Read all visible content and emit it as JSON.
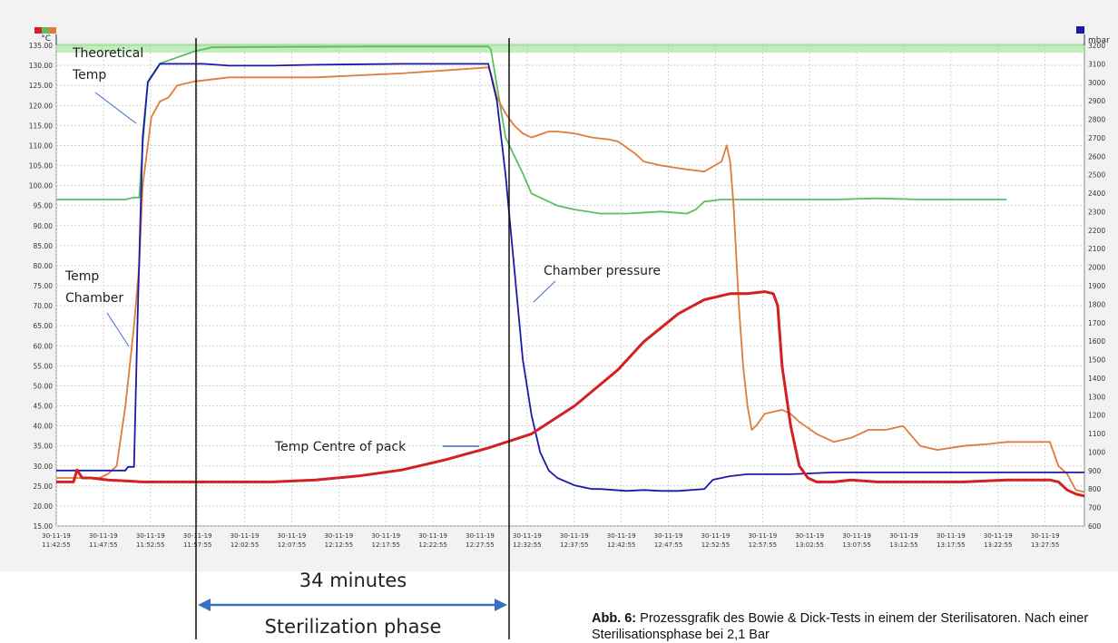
{
  "chart_data": {
    "type": "line",
    "left_unit": "°C",
    "right_unit": "mbar",
    "left_axis": {
      "ylim": [
        15,
        135
      ],
      "ticks": [
        "135.00",
        "130.00",
        "125.00",
        "120.00",
        "115.00",
        "110.00",
        "105.00",
        "100.00",
        "95.00",
        "90.00",
        "85.00",
        "80.00",
        "75.00",
        "70.00",
        "65.00",
        "60.00",
        "55.00",
        "50.00",
        "45.00",
        "40.00",
        "35.00",
        "30.00",
        "25.00",
        "20.00",
        "15.00"
      ]
    },
    "right_axis": {
      "ylim": [
        600,
        3200
      ],
      "ticks": [
        "3200",
        "3100",
        "3000",
        "2900",
        "2800",
        "2700",
        "2600",
        "2500",
        "2400",
        "2300",
        "2200",
        "2100",
        "2000",
        "1900",
        "1800",
        "1700",
        "1600",
        "1500",
        "1400",
        "1300",
        "1200",
        "1100",
        "1000",
        "900",
        "800",
        "700",
        "600"
      ]
    },
    "x_ticks": [
      {
        "date": "30-11-19",
        "time": "11:42:55"
      },
      {
        "date": "30-11-19",
        "time": "11:47:55"
      },
      {
        "date": "30-11-19",
        "time": "11:52:55"
      },
      {
        "date": "30-11-19",
        "time": "11:57:55"
      },
      {
        "date": "30-11-19",
        "time": "12:02:55"
      },
      {
        "date": "30-11-19",
        "time": "12:07:55"
      },
      {
        "date": "30-11-19",
        "time": "12:12:55"
      },
      {
        "date": "30-11-19",
        "time": "12:17:55"
      },
      {
        "date": "30-11-19",
        "time": "12:22:55"
      },
      {
        "date": "30-11-19",
        "time": "12:27:55"
      },
      {
        "date": "30-11-19",
        "time": "12:32:55"
      },
      {
        "date": "30-11-19",
        "time": "12:37:55"
      },
      {
        "date": "30-11-19",
        "time": "12:42:55"
      },
      {
        "date": "30-11-19",
        "time": "12:47:55"
      },
      {
        "date": "30-11-19",
        "time": "12:52:55"
      },
      {
        "date": "30-11-19",
        "time": "12:57:55"
      },
      {
        "date": "30-11-19",
        "time": "13:02:55"
      },
      {
        "date": "30-11-19",
        "time": "13:07:55"
      },
      {
        "date": "30-11-19",
        "time": "13:12:55"
      },
      {
        "date": "30-11-19",
        "time": "13:17:55"
      },
      {
        "date": "30-11-19",
        "time": "13:22:55"
      },
      {
        "date": "30-11-19",
        "time": "13:27:55"
      }
    ],
    "grid": true,
    "series": [
      {
        "name": "Theoretical Temp",
        "axis": "left",
        "color": "#5cbf5c",
        "points": [
          [
            0,
            96.5
          ],
          [
            8,
            96.5
          ],
          [
            9,
            97
          ],
          [
            9.6,
            97
          ],
          [
            10,
            110
          ],
          [
            10.6,
            126
          ],
          [
            12,
            130.5
          ],
          [
            14,
            132
          ],
          [
            16,
            133.5
          ],
          [
            18,
            134.5
          ],
          [
            24,
            134.6
          ],
          [
            40,
            134.7
          ],
          [
            50,
            134.7
          ],
          [
            50.3,
            134
          ],
          [
            51,
            125
          ],
          [
            52,
            112
          ],
          [
            54,
            103
          ],
          [
            55,
            98
          ],
          [
            56,
            97
          ],
          [
            58,
            95
          ],
          [
            60,
            94
          ],
          [
            63,
            93
          ],
          [
            66,
            93
          ],
          [
            70,
            93.5
          ],
          [
            73,
            93
          ],
          [
            74,
            94
          ],
          [
            75,
            96
          ],
          [
            77,
            96.5
          ],
          [
            82,
            96.5
          ],
          [
            90,
            96.5
          ],
          [
            95,
            96.8
          ],
          [
            100,
            96.5
          ],
          [
            110,
            96.5
          ]
        ]
      },
      {
        "name": "Temp Chamber",
        "axis": "left",
        "color": "#e07b3c",
        "points": [
          [
            0,
            27
          ],
          [
            5,
            27
          ],
          [
            6,
            28
          ],
          [
            7,
            30
          ],
          [
            8,
            45
          ],
          [
            9,
            65
          ],
          [
            9.6,
            80
          ],
          [
            10,
            100
          ],
          [
            10.6,
            110
          ],
          [
            11,
            117
          ],
          [
            12,
            121
          ],
          [
            13,
            122
          ],
          [
            14,
            125
          ],
          [
            16,
            126
          ],
          [
            20,
            127
          ],
          [
            30,
            127
          ],
          [
            40,
            128
          ],
          [
            50,
            129.5
          ],
          [
            50.3,
            128
          ],
          [
            51,
            122
          ],
          [
            52,
            118
          ],
          [
            53,
            115
          ],
          [
            54,
            113
          ],
          [
            55,
            112
          ],
          [
            57,
            113.5
          ],
          [
            58,
            113.5
          ],
          [
            60,
            113
          ],
          [
            62,
            112
          ],
          [
            64,
            111.5
          ],
          [
            65,
            111
          ],
          [
            67,
            108
          ],
          [
            68,
            106
          ],
          [
            70,
            105
          ],
          [
            73,
            104
          ],
          [
            75,
            103.5
          ],
          [
            77,
            106
          ],
          [
            77.6,
            110
          ],
          [
            78,
            106
          ],
          [
            78.4,
            95
          ],
          [
            79,
            70
          ],
          [
            79.5,
            55
          ],
          [
            80,
            45
          ],
          [
            80.5,
            39
          ],
          [
            81,
            40
          ],
          [
            82,
            43
          ],
          [
            84,
            44
          ],
          [
            85,
            43
          ],
          [
            86,
            41
          ],
          [
            88,
            38
          ],
          [
            90,
            36
          ],
          [
            92,
            37
          ],
          [
            94,
            39
          ],
          [
            96,
            39
          ],
          [
            98,
            40
          ],
          [
            100,
            35
          ],
          [
            102,
            34
          ],
          [
            105,
            35
          ],
          [
            108,
            35.5
          ],
          [
            110,
            36
          ],
          [
            112,
            36
          ],
          [
            114,
            36
          ],
          [
            115,
            36
          ],
          [
            116,
            30
          ],
          [
            117,
            28
          ],
          [
            118,
            24
          ],
          [
            119,
            23.5
          ]
        ]
      },
      {
        "name": "Chamber pressure",
        "axis": "right",
        "color": "#1a1aa8",
        "points": [
          [
            0,
            900
          ],
          [
            6,
            900
          ],
          [
            8,
            900
          ],
          [
            8.3,
            920
          ],
          [
            9,
            920
          ],
          [
            9.4,
            1700
          ],
          [
            10,
            2700
          ],
          [
            10.6,
            3000
          ],
          [
            12,
            3100
          ],
          [
            14,
            3100
          ],
          [
            17,
            3100
          ],
          [
            20,
            3090
          ],
          [
            25,
            3090
          ],
          [
            30,
            3095
          ],
          [
            40,
            3100
          ],
          [
            50,
            3100
          ],
          [
            51,
            2900
          ],
          [
            52,
            2500
          ],
          [
            53,
            2000
          ],
          [
            54,
            1500
          ],
          [
            55,
            1200
          ],
          [
            56,
            1000
          ],
          [
            57,
            900
          ],
          [
            58,
            860
          ],
          [
            60,
            820
          ],
          [
            62,
            800
          ],
          [
            63,
            800
          ],
          [
            66,
            790
          ],
          [
            68,
            795
          ],
          [
            70,
            790
          ],
          [
            72,
            790
          ],
          [
            75,
            800
          ],
          [
            76,
            850
          ],
          [
            78,
            870
          ],
          [
            80,
            880
          ],
          [
            85,
            880
          ],
          [
            90,
            890
          ],
          [
            100,
            890
          ],
          [
            110,
            890
          ],
          [
            119,
            890
          ]
        ]
      },
      {
        "name": "Temp Centre of pack",
        "axis": "left",
        "color": "#d42020",
        "points": [
          [
            0,
            26
          ],
          [
            2,
            26
          ],
          [
            2.4,
            29
          ],
          [
            3,
            27
          ],
          [
            4,
            27
          ],
          [
            6,
            26.5
          ],
          [
            10,
            26
          ],
          [
            15,
            26
          ],
          [
            20,
            26
          ],
          [
            25,
            26
          ],
          [
            30,
            26.5
          ],
          [
            35,
            27.5
          ],
          [
            40,
            29
          ],
          [
            45,
            31.5
          ],
          [
            50,
            34.5
          ],
          [
            55,
            38
          ],
          [
            60,
            45
          ],
          [
            65,
            54
          ],
          [
            68,
            61
          ],
          [
            72,
            68
          ],
          [
            75,
            71.5
          ],
          [
            78,
            73
          ],
          [
            80,
            73
          ],
          [
            82,
            73.5
          ],
          [
            83,
            73
          ],
          [
            83.5,
            70
          ],
          [
            84,
            55
          ],
          [
            85,
            40
          ],
          [
            86,
            30
          ],
          [
            87,
            27
          ],
          [
            88,
            26
          ],
          [
            90,
            26
          ],
          [
            92,
            26.5
          ],
          [
            95,
            26
          ],
          [
            98,
            26
          ],
          [
            100,
            26
          ],
          [
            105,
            26
          ],
          [
            110,
            26.5
          ],
          [
            115,
            26.5
          ],
          [
            116,
            26
          ],
          [
            117,
            24
          ],
          [
            118,
            23
          ],
          [
            119,
            22.5
          ]
        ]
      }
    ],
    "annotations": [
      {
        "id": "theoretical",
        "lines": [
          "Theoretical",
          "Temp"
        ]
      },
      {
        "id": "chamber",
        "lines": [
          "Temp",
          "Chamber"
        ]
      },
      {
        "id": "pressure",
        "lines": [
          "Chamber pressure"
        ]
      },
      {
        "id": "centre",
        "lines": [
          "Temp Centre of pack"
        ]
      }
    ]
  },
  "overlay": {
    "duration": "34 minutes",
    "phase": "Sterilization phase"
  },
  "caption": {
    "label": "Abb. 6:",
    "text": " Prozessgrafik des Bowie & Dick-Tests in einem der Sterilisatoren. Nach einer Sterilisationsphase bei 2,1 Bar"
  }
}
